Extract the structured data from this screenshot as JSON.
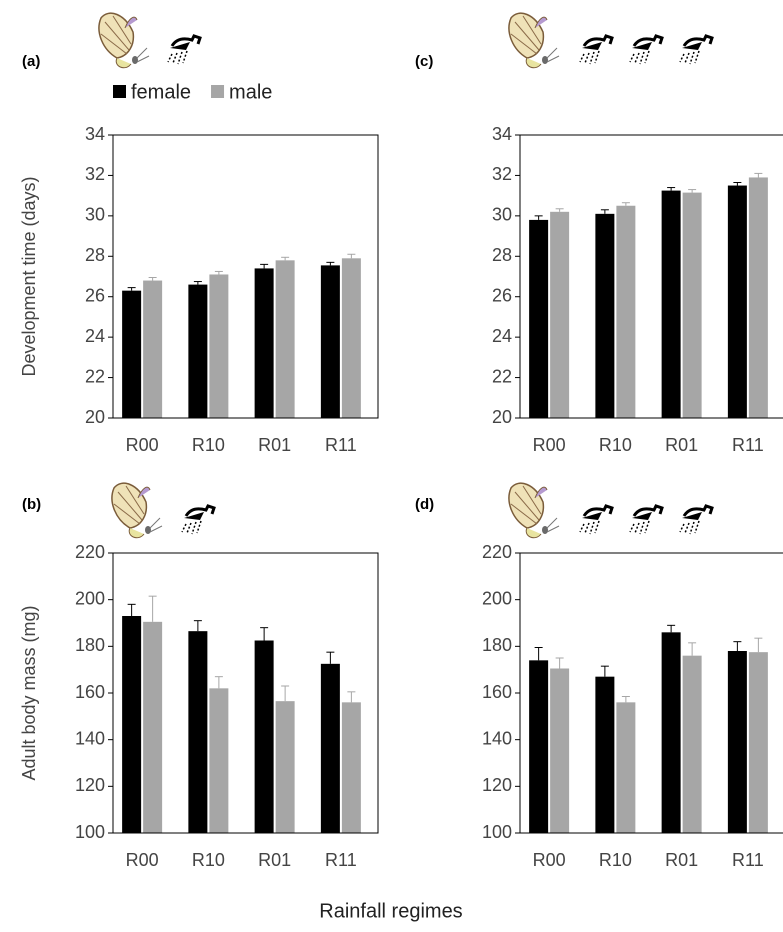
{
  "xlabel": "Rainfall regimes",
  "chart_data": [
    {
      "type": "bar",
      "label": "(a)",
      "ylabel": "Development time (days)",
      "legend": true,
      "categories": [
        "R00",
        "R10",
        "R01",
        "R11"
      ],
      "series": [
        {
          "name": "female",
          "color": "#000000",
          "values": [
            26.3,
            26.6,
            27.4,
            27.55
          ],
          "errors": [
            0.15,
            0.15,
            0.2,
            0.15
          ]
        },
        {
          "name": "male",
          "color": "#a6a6a6",
          "values": [
            26.8,
            27.1,
            27.8,
            27.9
          ],
          "errors": [
            0.15,
            0.15,
            0.15,
            0.2
          ]
        }
      ],
      "ylim": [
        20,
        34
      ],
      "yticks": [
        20,
        22,
        24,
        26,
        28,
        30,
        32,
        34
      ]
    },
    {
      "type": "bar",
      "label": "(c)",
      "categories": [
        "R00",
        "R10",
        "R01",
        "R11"
      ],
      "series": [
        {
          "color": "#000000",
          "values": [
            29.8,
            30.1,
            31.25,
            31.5
          ],
          "errors": [
            0.2,
            0.2,
            0.15,
            0.15
          ]
        },
        {
          "color": "#a6a6a6",
          "values": [
            30.2,
            30.5,
            31.15,
            31.9
          ],
          "errors": [
            0.15,
            0.15,
            0.15,
            0.2
          ]
        }
      ],
      "ylim": [
        20,
        34
      ],
      "yticks": [
        20,
        22,
        24,
        26,
        28,
        30,
        32,
        34
      ]
    },
    {
      "type": "bar",
      "label": "(b)",
      "ylabel": "Adult body mass (mg)",
      "categories": [
        "R00",
        "R10",
        "R01",
        "R11"
      ],
      "series": [
        {
          "color": "#000000",
          "values": [
            193,
            186.5,
            182.5,
            172.5
          ],
          "errors": [
            5,
            4.5,
            5.5,
            5
          ]
        },
        {
          "color": "#a6a6a6",
          "values": [
            190.5,
            162,
            156.5,
            156
          ],
          "errors": [
            11,
            5,
            6.5,
            4.5
          ]
        }
      ],
      "ylim": [
        100,
        220
      ],
      "yticks": [
        100,
        120,
        140,
        160,
        180,
        200,
        220
      ]
    },
    {
      "type": "bar",
      "label": "(d)",
      "categories": [
        "R00",
        "R10",
        "R01",
        "R11"
      ],
      "series": [
        {
          "color": "#000000",
          "values": [
            174,
            167,
            186,
            178
          ],
          "errors": [
            5.5,
            4.5,
            3,
            4
          ]
        },
        {
          "color": "#a6a6a6",
          "values": [
            170.5,
            156,
            176,
            177.5
          ],
          "errors": [
            4.5,
            2.5,
            5.5,
            6
          ]
        }
      ],
      "ylim": [
        100,
        220
      ],
      "yticks": [
        100,
        120,
        140,
        160,
        180,
        200,
        220
      ]
    }
  ]
}
